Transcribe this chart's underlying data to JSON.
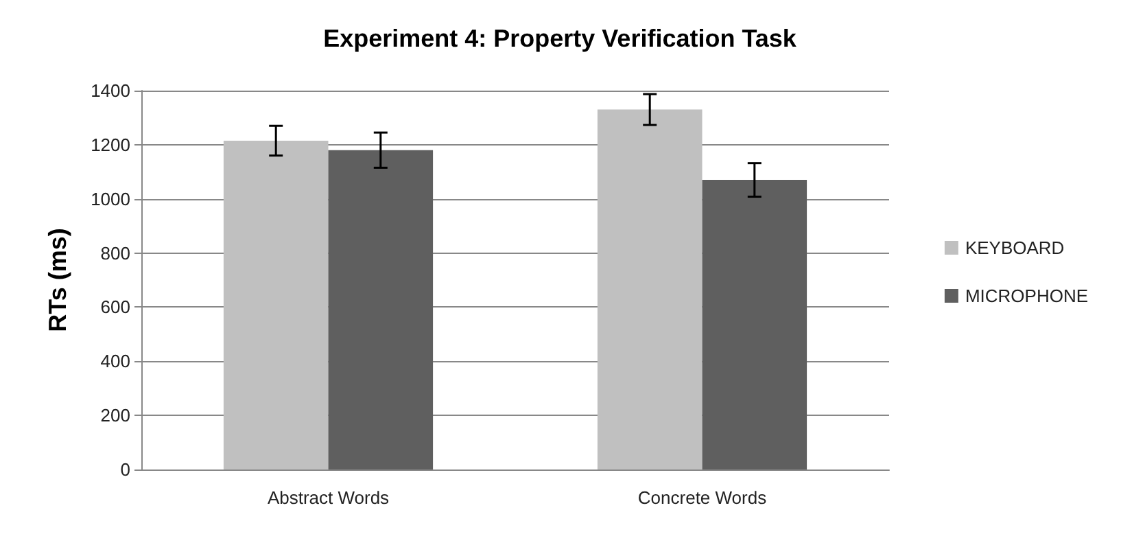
{
  "chart_data": {
    "type": "bar",
    "title": "Experiment 4: Property Verification Task",
    "ylabel": "RTs (ms)",
    "categories": [
      "Abstract Words",
      "Concrete Words"
    ],
    "series": [
      {
        "name": "KEYBOARD",
        "color": "#c0c0c0",
        "values": [
          1215,
          1330
        ],
        "errors": [
          55,
          57
        ]
      },
      {
        "name": "MICROPHONE",
        "color": "#5f5f5f",
        "values": [
          1180,
          1070
        ],
        "errors": [
          65,
          62
        ]
      }
    ],
    "ylim": [
      0,
      1400
    ],
    "yticks": [
      0,
      200,
      400,
      600,
      800,
      1000,
      1200,
      1400
    ],
    "grid": "y",
    "legend": "right"
  }
}
